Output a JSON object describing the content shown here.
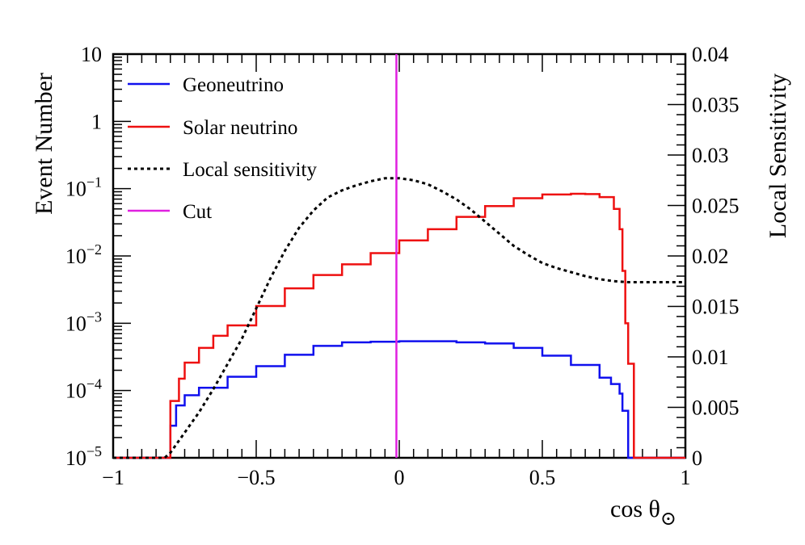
{
  "chart_data": {
    "type": "histogram",
    "x_axis": {
      "label_base": "cos θ",
      "label_sub": "⊙",
      "range": [
        -1,
        1
      ],
      "ticks": [
        {
          "value": -1,
          "label": "−1"
        },
        {
          "value": -0.5,
          "label": "−0.5"
        },
        {
          "value": 0,
          "label": "0"
        },
        {
          "value": 0.5,
          "label": "0.5"
        },
        {
          "value": 1,
          "label": "1"
        }
      ]
    },
    "y_left": {
      "label": "Event Number",
      "scale": "log",
      "range": [
        1e-05,
        10
      ],
      "ticks": [
        {
          "value": 10,
          "base": "10",
          "exp": ""
        },
        {
          "value": 1,
          "base": "1",
          "exp": ""
        },
        {
          "value": 0.1,
          "base": "10",
          "exp": "−1"
        },
        {
          "value": 0.01,
          "base": "10",
          "exp": "−2"
        },
        {
          "value": 0.001,
          "base": "10",
          "exp": "−3"
        },
        {
          "value": 0.0001,
          "base": "10",
          "exp": "−4"
        },
        {
          "value": 1e-05,
          "base": "10",
          "exp": "−5"
        }
      ]
    },
    "y_right": {
      "label": "Local Sensitivity",
      "scale": "linear",
      "range": [
        0,
        0.04
      ],
      "ticks": [
        {
          "value": 0,
          "label": "0"
        },
        {
          "value": 0.005,
          "label": "0.005"
        },
        {
          "value": 0.01,
          "label": "0.01"
        },
        {
          "value": 0.015,
          "label": "0.015"
        },
        {
          "value": 0.02,
          "label": "0.02"
        },
        {
          "value": 0.025,
          "label": "0.025"
        },
        {
          "value": 0.03,
          "label": "0.03"
        },
        {
          "value": 0.035,
          "label": "0.035"
        },
        {
          "value": 0.04,
          "label": "0.04"
        }
      ]
    },
    "series": [
      {
        "name": "Geoneutrino",
        "color": "#1010ee",
        "style": "step",
        "axis": "left",
        "points": [
          [
            -1,
            1e-05
          ],
          [
            -0.82,
            1e-05
          ],
          [
            -0.8,
            3e-05
          ],
          [
            -0.78,
            6e-05
          ],
          [
            -0.75,
            8.5e-05
          ],
          [
            -0.7,
            0.00011
          ],
          [
            -0.6,
            0.00016
          ],
          [
            -0.5,
            0.00023
          ],
          [
            -0.4,
            0.00034
          ],
          [
            -0.3,
            0.00046
          ],
          [
            -0.2,
            0.00052
          ],
          [
            -0.1,
            0.00053
          ],
          [
            0,
            0.00054
          ],
          [
            0.1,
            0.00054
          ],
          [
            0.2,
            0.00052
          ],
          [
            0.3,
            0.0005
          ],
          [
            0.4,
            0.00043
          ],
          [
            0.5,
            0.00033
          ],
          [
            0.6,
            0.00024
          ],
          [
            0.7,
            0.000155
          ],
          [
            0.74,
            0.000125
          ],
          [
            0.77,
            9e-05
          ],
          [
            0.78,
            5e-05
          ],
          [
            0.8,
            1e-05
          ],
          [
            1,
            1e-05
          ]
        ]
      },
      {
        "name": "Solar neutrino",
        "color": "#ee1010",
        "style": "step",
        "axis": "left",
        "points": [
          [
            -1,
            1e-05
          ],
          [
            -0.82,
            1e-05
          ],
          [
            -0.8,
            7e-05
          ],
          [
            -0.77,
            0.00015
          ],
          [
            -0.75,
            0.00026
          ],
          [
            -0.7,
            0.00043
          ],
          [
            -0.65,
            0.00065
          ],
          [
            -0.6,
            0.00093
          ],
          [
            -0.5,
            0.0018
          ],
          [
            -0.4,
            0.0033
          ],
          [
            -0.3,
            0.0052
          ],
          [
            -0.2,
            0.0075
          ],
          [
            -0.1,
            0.011
          ],
          [
            0,
            0.017
          ],
          [
            0.1,
            0.025
          ],
          [
            0.2,
            0.038
          ],
          [
            0.3,
            0.055
          ],
          [
            0.4,
            0.072
          ],
          [
            0.5,
            0.082
          ],
          [
            0.6,
            0.084
          ],
          [
            0.65,
            0.083
          ],
          [
            0.7,
            0.075
          ],
          [
            0.75,
            0.05
          ],
          [
            0.77,
            0.025
          ],
          [
            0.78,
            0.006
          ],
          [
            0.79,
            0.001
          ],
          [
            0.8,
            0.00025
          ],
          [
            0.82,
            1e-05
          ],
          [
            1,
            1e-05
          ]
        ]
      },
      {
        "name": "Local sensitivity",
        "color": "#000000",
        "style": "dotted",
        "axis": "right",
        "points": [
          [
            -1,
            0
          ],
          [
            -0.82,
            0
          ],
          [
            -0.8,
            0.0005
          ],
          [
            -0.75,
            0.0025
          ],
          [
            -0.7,
            0.0045
          ],
          [
            -0.65,
            0.0068
          ],
          [
            -0.6,
            0.0093
          ],
          [
            -0.55,
            0.0118
          ],
          [
            -0.5,
            0.0148
          ],
          [
            -0.45,
            0.0178
          ],
          [
            -0.4,
            0.0205
          ],
          [
            -0.35,
            0.0228
          ],
          [
            -0.3,
            0.0245
          ],
          [
            -0.25,
            0.0258
          ],
          [
            -0.2,
            0.0265
          ],
          [
            -0.15,
            0.027
          ],
          [
            -0.1,
            0.0274
          ],
          [
            -0.05,
            0.0277
          ],
          [
            0,
            0.0277
          ],
          [
            0.05,
            0.0275
          ],
          [
            0.1,
            0.0271
          ],
          [
            0.15,
            0.0264
          ],
          [
            0.2,
            0.0256
          ],
          [
            0.25,
            0.0246
          ],
          [
            0.3,
            0.0234
          ],
          [
            0.35,
            0.0222
          ],
          [
            0.4,
            0.021
          ],
          [
            0.45,
            0.0201
          ],
          [
            0.5,
            0.0193
          ],
          [
            0.55,
            0.0188
          ],
          [
            0.6,
            0.0184
          ],
          [
            0.65,
            0.018
          ],
          [
            0.7,
            0.0177
          ],
          [
            0.75,
            0.0175
          ],
          [
            0.8,
            0.0174
          ],
          [
            1,
            0.0174
          ]
        ]
      },
      {
        "name": "Cut",
        "color": "#e020e0",
        "style": "vertical-line",
        "x": -0.01
      }
    ],
    "legend": {
      "placement": "top-left",
      "entries": [
        "Geoneutrino",
        "Solar neutrino",
        "Local sensitivity",
        "Cut"
      ]
    }
  }
}
